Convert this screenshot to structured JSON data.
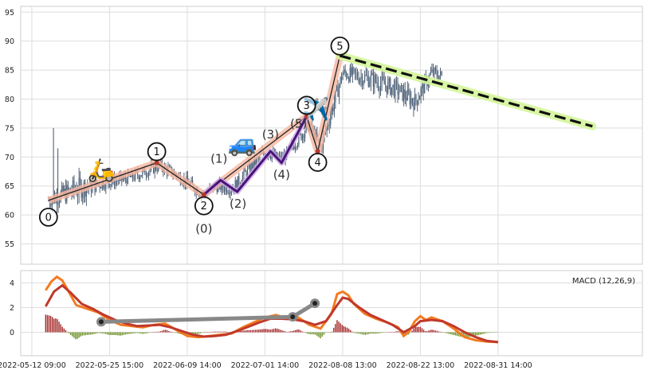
{
  "chart_data": [
    {
      "type": "candlestick",
      "panel": "price",
      "ylim": [
        51.5,
        96
      ],
      "yticks": [
        55,
        60,
        65,
        70,
        75,
        80,
        85,
        90,
        95
      ],
      "xlim": [
        0,
        112
      ],
      "grid": true,
      "price_envelope": [
        {
          "x": 5,
          "v": 62.5,
          "spread": 2.5
        },
        {
          "x": 10,
          "v": 64.5,
          "spread": 4
        },
        {
          "x": 15,
          "v": 65.5,
          "spread": 2
        },
        {
          "x": 20,
          "v": 66.5,
          "spread": 2
        },
        {
          "x": 25,
          "v": 68.5,
          "spread": 2
        },
        {
          "x": 28,
          "v": 67,
          "spread": 2
        },
        {
          "x": 33,
          "v": 63.5,
          "spread": 2
        },
        {
          "x": 35,
          "v": 65,
          "spread": 2
        },
        {
          "x": 38,
          "v": 64.5,
          "spread": 2
        },
        {
          "x": 44,
          "v": 71,
          "spread": 2
        },
        {
          "x": 47,
          "v": 69.5,
          "spread": 2
        },
        {
          "x": 52,
          "v": 75.5,
          "spread": 2
        },
        {
          "x": 54,
          "v": 71.5,
          "spread": 2.5
        },
        {
          "x": 56,
          "v": 78,
          "spread": 3
        },
        {
          "x": 58,
          "v": 84.5,
          "spread": 2.5
        },
        {
          "x": 63,
          "v": 83.5,
          "spread": 3
        },
        {
          "x": 68,
          "v": 81.5,
          "spread": 3
        },
        {
          "x": 71,
          "v": 79.5,
          "spread": 3
        },
        {
          "x": 74,
          "v": 84.5,
          "spread": 2.5
        },
        {
          "x": 76,
          "v": 84,
          "spread": 2
        }
      ],
      "wave_main": {
        "points": [
          [
            5,
            62.5
          ],
          [
            24.5,
            69
          ],
          [
            33,
            63.5
          ],
          [
            51.5,
            77
          ],
          [
            53.5,
            71
          ],
          [
            57.5,
            87.5
          ]
        ],
        "labels": [
          "0",
          "1",
          "2",
          "3",
          "4",
          "5"
        ]
      },
      "wave_sub": {
        "points": [
          [
            33,
            63.5
          ],
          [
            36,
            66
          ],
          [
            39,
            64
          ],
          [
            45,
            71
          ],
          [
            47,
            69
          ],
          [
            51.5,
            77
          ]
        ],
        "labels": [
          "(0)",
          "(1)",
          "(2)",
          "(3)",
          "(4)",
          "(5)"
        ]
      },
      "projection": {
        "points": [
          [
            57.5,
            87.5
          ],
          [
            103,
            75.3
          ]
        ]
      },
      "icons": [
        "scooter-icon",
        "car-icon",
        "airplane-icon"
      ]
    },
    {
      "type": "line",
      "panel": "macd",
      "ylim": [
        -1.9,
        5
      ],
      "yticks": [
        0,
        2,
        4
      ],
      "legend": "MACD (12,26,9)",
      "legend_position": "top-right",
      "xticks": [
        {
          "x": 2,
          "label": "2022-05-12 09:00"
        },
        {
          "x": 16,
          "label": "2022-05-25 15:00"
        },
        {
          "x": 30,
          "label": "2022-06-09 14:00"
        },
        {
          "x": 44,
          "label": "2022-07-01 14:00"
        },
        {
          "x": 58,
          "label": "2022-08-08 13:00"
        },
        {
          "x": 72,
          "label": "2022-08-22 13:00"
        },
        {
          "x": 86,
          "label": "2022-08-31 14:00"
        }
      ],
      "macd_line": [
        [
          4.5,
          3.4
        ],
        [
          5.5,
          4.1
        ],
        [
          6.5,
          4.5
        ],
        [
          7.5,
          4.2
        ],
        [
          9,
          3
        ],
        [
          10,
          2.2
        ],
        [
          12,
          1.9
        ],
        [
          14,
          1.6
        ],
        [
          16,
          1
        ],
        [
          18,
          0.6
        ],
        [
          20,
          0.5
        ],
        [
          22,
          0.4
        ],
        [
          24,
          0.6
        ],
        [
          26,
          0.7
        ],
        [
          28,
          0.2
        ],
        [
          30,
          -0.3
        ],
        [
          32,
          -0.4
        ],
        [
          34,
          -0.3
        ],
        [
          36,
          -0.2
        ],
        [
          38,
          -0.1
        ],
        [
          40,
          0.4
        ],
        [
          42,
          0.8
        ],
        [
          44,
          1.2
        ],
        [
          46,
          1.4
        ],
        [
          48,
          1.1
        ],
        [
          50,
          1.2
        ],
        [
          52,
          0.6
        ],
        [
          54,
          0.3
        ],
        [
          56,
          1.5
        ],
        [
          57,
          3.1
        ],
        [
          58,
          3.3
        ],
        [
          59,
          3.0
        ],
        [
          60,
          2.3
        ],
        [
          62,
          1.5
        ],
        [
          64,
          1.1
        ],
        [
          66,
          0.8
        ],
        [
          68,
          0.4
        ],
        [
          69,
          -0.3
        ],
        [
          70,
          0.1
        ],
        [
          71,
          0.9
        ],
        [
          72,
          1.3
        ],
        [
          73,
          1.0
        ],
        [
          74,
          1.2
        ],
        [
          76,
          0.9
        ],
        [
          78,
          0.3
        ],
        [
          80,
          -0.4
        ],
        [
          82,
          -0.65
        ],
        [
          84,
          -0.75
        ],
        [
          86,
          -0.8
        ]
      ],
      "signal_line": [
        [
          4.5,
          2.1
        ],
        [
          6,
          3.3
        ],
        [
          7.5,
          3.8
        ],
        [
          9,
          3.2
        ],
        [
          11,
          2.3
        ],
        [
          13,
          1.9
        ],
        [
          15,
          1.4
        ],
        [
          17,
          1.0
        ],
        [
          19,
          0.7
        ],
        [
          21,
          0.5
        ],
        [
          23,
          0.55
        ],
        [
          25,
          0.6
        ],
        [
          27,
          0.4
        ],
        [
          29,
          0.1
        ],
        [
          31,
          -0.2
        ],
        [
          33,
          -0.35
        ],
        [
          35,
          -0.3
        ],
        [
          37,
          -0.2
        ],
        [
          39,
          0.1
        ],
        [
          41,
          0.45
        ],
        [
          43,
          0.8
        ],
        [
          45,
          1.1
        ],
        [
          47,
          1.1
        ],
        [
          49,
          1.05
        ],
        [
          51,
          0.9
        ],
        [
          53,
          0.6
        ],
        [
          55,
          0.9
        ],
        [
          57,
          2.2
        ],
        [
          58,
          2.8
        ],
        [
          59,
          2.7
        ],
        [
          61,
          2.0
        ],
        [
          63,
          1.4
        ],
        [
          65,
          1.0
        ],
        [
          67,
          0.6
        ],
        [
          69,
          0.0
        ],
        [
          71,
          0.5
        ],
        [
          72,
          0.9
        ],
        [
          74,
          1.0
        ],
        [
          76,
          0.9
        ],
        [
          78,
          0.5
        ],
        [
          80,
          0.0
        ],
        [
          82,
          -0.4
        ],
        [
          84,
          -0.7
        ],
        [
          86,
          -0.8
        ]
      ],
      "trendline": {
        "points": [
          [
            14.5,
            0.85
          ],
          [
            49,
            1.25
          ],
          [
            53,
            2.35
          ]
        ]
      }
    }
  ]
}
